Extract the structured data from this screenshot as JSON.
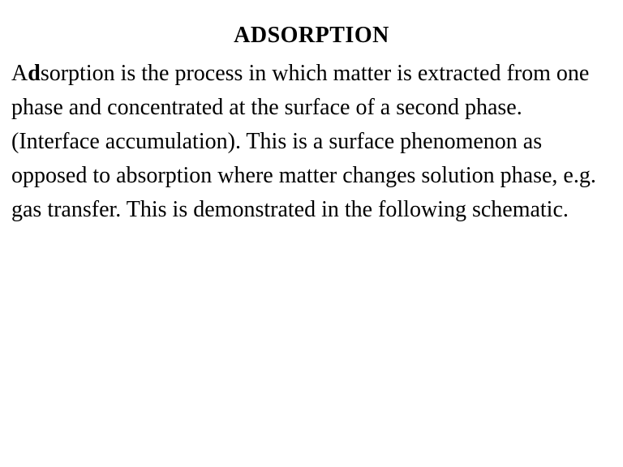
{
  "title": "ADSORPTION",
  "paragraph_prefix": "A",
  "paragraph_bold": "d",
  "paragraph_rest": "sorption is the process in which matter is extracted from one phase and concentrated at the surface of a second phase. (Interface accumulation). This is a surface phenomenon as opposed to absorption where matter changes solution phase, e.g. gas transfer.  This is demonstrated in the following schematic.",
  "styles": {
    "background_color": "#ffffff",
    "text_color": "#000000",
    "font_family": "Times New Roman",
    "title_fontsize": 28,
    "title_weight": "bold",
    "body_fontsize": 28,
    "line_height": 1.5
  }
}
